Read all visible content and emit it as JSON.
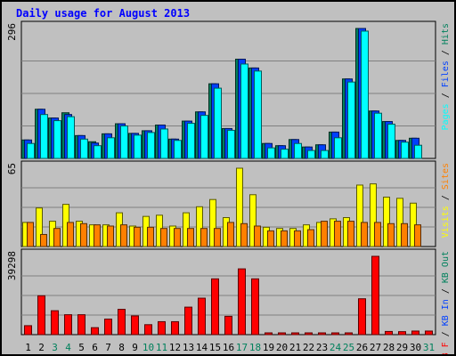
{
  "colors": {
    "background": "#c0c0c0",
    "panel": "#c0c0c0",
    "grid": "#808080",
    "title": "#0000ff",
    "hits": "#00805c",
    "files": "#0040ff",
    "pages": "#00ffff",
    "visits": "#ffff00",
    "sites": "#ff8000",
    "kbytes": "#ff0000",
    "weekend": "#00805c",
    "weekday": "#000000"
  },
  "chart_data": {
    "title": "Daily usage for August 2013",
    "type": "bar",
    "categories": [
      "1",
      "2",
      "3",
      "4",
      "5",
      "6",
      "7",
      "8",
      "9",
      "10",
      "11",
      "12",
      "13",
      "14",
      "15",
      "16",
      "17",
      "18",
      "19",
      "20",
      "21",
      "22",
      "23",
      "24",
      "25",
      "26",
      "27",
      "28",
      "29",
      "30",
      "31"
    ],
    "weekend_days": [
      "3",
      "4",
      "10",
      "11",
      "17",
      "18",
      "24",
      "25",
      "31"
    ],
    "panels": [
      {
        "id": "top",
        "max_label": "296",
        "ylim": [
          0,
          296
        ],
        "legend": [
          {
            "text": "Pages",
            "color": "#00ffff"
          },
          {
            "text": " / ",
            "color": "#000000"
          },
          {
            "text": "Files",
            "color": "#0040ff"
          },
          {
            "text": " / ",
            "color": "#000000"
          },
          {
            "text": "Hits",
            "color": "#00805c"
          }
        ],
        "series": [
          {
            "name": "Hits",
            "color": "#00805c",
            "values": [
              42,
              112,
              92,
              104,
              52,
              38,
              56,
              79,
              57,
              63,
              76,
              44,
              85,
              106,
              170,
              68,
              226,
              206,
              34,
              29,
              43,
              26,
              31,
              60,
              181,
              296,
              108,
              84,
              41,
              46,
              0
            ]
          },
          {
            "name": "Files",
            "color": "#0040ff",
            "values": [
              42,
              112,
              92,
              100,
              52,
              35,
              56,
              79,
              57,
              63,
              76,
              44,
              85,
              106,
              170,
              68,
              226,
              206,
              34,
              29,
              43,
              26,
              31,
              60,
              181,
              296,
              108,
              84,
              41,
              46,
              0
            ]
          },
          {
            "name": "Pages",
            "color": "#00ffff",
            "values": [
              34,
              100,
              86,
              95,
              44,
              29,
              47,
              74,
              53,
              59,
              67,
              41,
              80,
              98,
              160,
              64,
              215,
              199,
              24,
              21,
              34,
              18,
              18,
              47,
              174,
              290,
              103,
              78,
              37,
              30,
              0
            ]
          }
        ]
      },
      {
        "id": "middle",
        "max_label": "65",
        "ylim": [
          0,
          65
        ],
        "legend": [
          {
            "text": "Visits",
            "color": "#ffff00"
          },
          {
            "text": " / ",
            "color": "#000000"
          },
          {
            "text": "Sites",
            "color": "#ff8000"
          }
        ],
        "series": [
          {
            "name": "Visits",
            "color": "#ffff00",
            "values": [
              20,
              32,
              21,
              35,
              21,
              18,
              18,
              28,
              17,
              25,
              26,
              17,
              28,
              33,
              39,
              24,
              65,
              43,
              16,
              15,
              15,
              18,
              20,
              23,
              24,
              51,
              52,
              41,
              40,
              36,
              0
            ]
          },
          {
            "name": "Sites",
            "color": "#ff8000",
            "values": [
              20,
              10,
              15,
              20,
              19,
              18,
              17,
              18,
              16,
              16,
              15,
              15,
              15,
              15,
              15,
              20,
              19,
              17,
              13,
              13,
              13,
              14,
              21,
              21,
              21,
              20,
              20,
              19,
              19,
              18,
              0
            ]
          }
        ]
      },
      {
        "id": "bottom",
        "max_label": "39298",
        "ylim": [
          0,
          39298
        ],
        "legend": [
          {
            "text": "KB F",
            "color": "#ff0000"
          },
          {
            "text": " / ",
            "color": "#000000"
          },
          {
            "text": "KB In",
            "color": "#0040ff"
          },
          {
            "text": " / ",
            "color": "#000000"
          },
          {
            "text": "KB Out",
            "color": "#00805c"
          }
        ],
        "series": [
          {
            "name": "KB F",
            "color": "#ff0000",
            "values": [
              4500,
              19500,
              12000,
              10000,
              10000,
              3500,
              7800,
              12700,
              9400,
              5000,
              6500,
              6500,
              13800,
              18300,
              28000,
              9200,
              33000,
              28000,
              500,
              500,
              500,
              500,
              500,
              500,
              500,
              18000,
              39298,
              1600,
              1500,
              1800,
              1800
            ]
          }
        ]
      }
    ]
  }
}
